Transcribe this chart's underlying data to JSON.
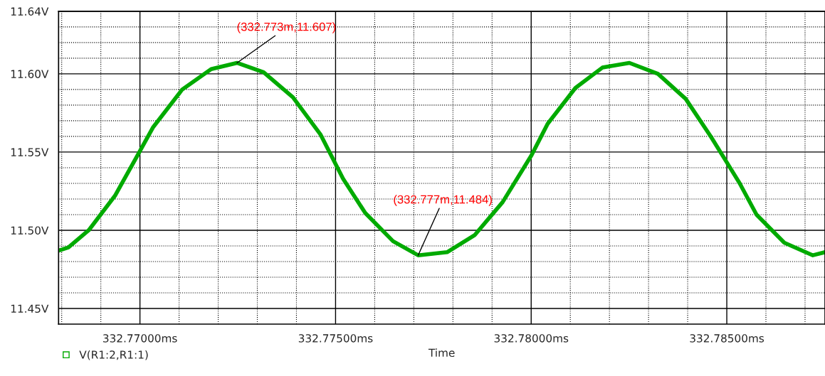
{
  "chart_data": {
    "type": "line",
    "xlabel": "Time",
    "xlim": [
      332.76792,
      332.78751
    ],
    "ylim": [
      11.44,
      11.64
    ],
    "xticks": [
      {
        "value": 332.768,
        "label": null
      },
      {
        "value": 332.769,
        "label": null
      },
      {
        "value": 332.77,
        "label": "332.77000ms"
      },
      {
        "value": 332.771,
        "label": null
      },
      {
        "value": 332.772,
        "label": null
      },
      {
        "value": 332.773,
        "label": null
      },
      {
        "value": 332.774,
        "label": null
      },
      {
        "value": 332.775,
        "label": "332.77500ms"
      },
      {
        "value": 332.776,
        "label": null
      },
      {
        "value": 332.777,
        "label": null
      },
      {
        "value": 332.778,
        "label": null
      },
      {
        "value": 332.779,
        "label": null
      },
      {
        "value": 332.78,
        "label": "332.78000ms"
      },
      {
        "value": 332.781,
        "label": null
      },
      {
        "value": 332.782,
        "label": null
      },
      {
        "value": 332.783,
        "label": null
      },
      {
        "value": 332.784,
        "label": null
      },
      {
        "value": 332.785,
        "label": "332.78500ms"
      },
      {
        "value": 332.786,
        "label": null
      },
      {
        "value": 332.787,
        "label": null
      }
    ],
    "yticks": [
      {
        "value": 11.45,
        "label": "11.45V"
      },
      {
        "value": 11.46,
        "label": null
      },
      {
        "value": 11.47,
        "label": null
      },
      {
        "value": 11.48,
        "label": null
      },
      {
        "value": 11.49,
        "label": null
      },
      {
        "value": 11.5,
        "label": "11.50V"
      },
      {
        "value": 11.51,
        "label": null
      },
      {
        "value": 11.52,
        "label": null
      },
      {
        "value": 11.53,
        "label": null
      },
      {
        "value": 11.54,
        "label": null
      },
      {
        "value": 11.55,
        "label": "11.55V"
      },
      {
        "value": 11.56,
        "label": null
      },
      {
        "value": 11.57,
        "label": null
      },
      {
        "value": 11.58,
        "label": null
      },
      {
        "value": 11.59,
        "label": null
      },
      {
        "value": 11.6,
        "label": "11.60V"
      },
      {
        "value": 11.61,
        "label": null
      },
      {
        "value": 11.62,
        "label": null
      },
      {
        "value": 11.63,
        "label": null
      },
      {
        "value": 11.64,
        "label": "11.64V"
      }
    ],
    "grid": true,
    "legend": "bottom left",
    "line_style": "solid",
    "series": [
      {
        "name": "V(R1:2,R1:1)",
        "color": "#00aa00",
        "x": [
          332.76792,
          332.76817,
          332.76869,
          332.76936,
          332.76994,
          332.77034,
          332.77108,
          332.77182,
          332.77248,
          332.77316,
          332.77391,
          332.77462,
          332.77519,
          332.77576,
          332.77647,
          332.77711,
          332.77785,
          332.77856,
          332.77927,
          332.78001,
          332.78042,
          332.78113,
          332.78182,
          332.78251,
          332.78324,
          332.78395,
          332.78459,
          332.78533,
          332.78576,
          332.78647,
          332.7872,
          332.78751
        ],
        "values": [
          11.487,
          11.489,
          11.5,
          11.522,
          11.548,
          11.566,
          11.59,
          11.603,
          11.607,
          11.601,
          11.585,
          11.561,
          11.533,
          11.511,
          11.493,
          11.484,
          11.486,
          11.497,
          11.518,
          11.548,
          11.568,
          11.591,
          11.604,
          11.607,
          11.6,
          11.584,
          11.56,
          11.53,
          11.51,
          11.492,
          11.484,
          11.486
        ]
      }
    ],
    "annotations": [
      {
        "text": "(332.773m,11.607)",
        "x": 332.77248,
        "y": 11.607
      },
      {
        "text": "(332.777m,11.484)",
        "x": 332.77711,
        "y": 11.484
      }
    ]
  }
}
